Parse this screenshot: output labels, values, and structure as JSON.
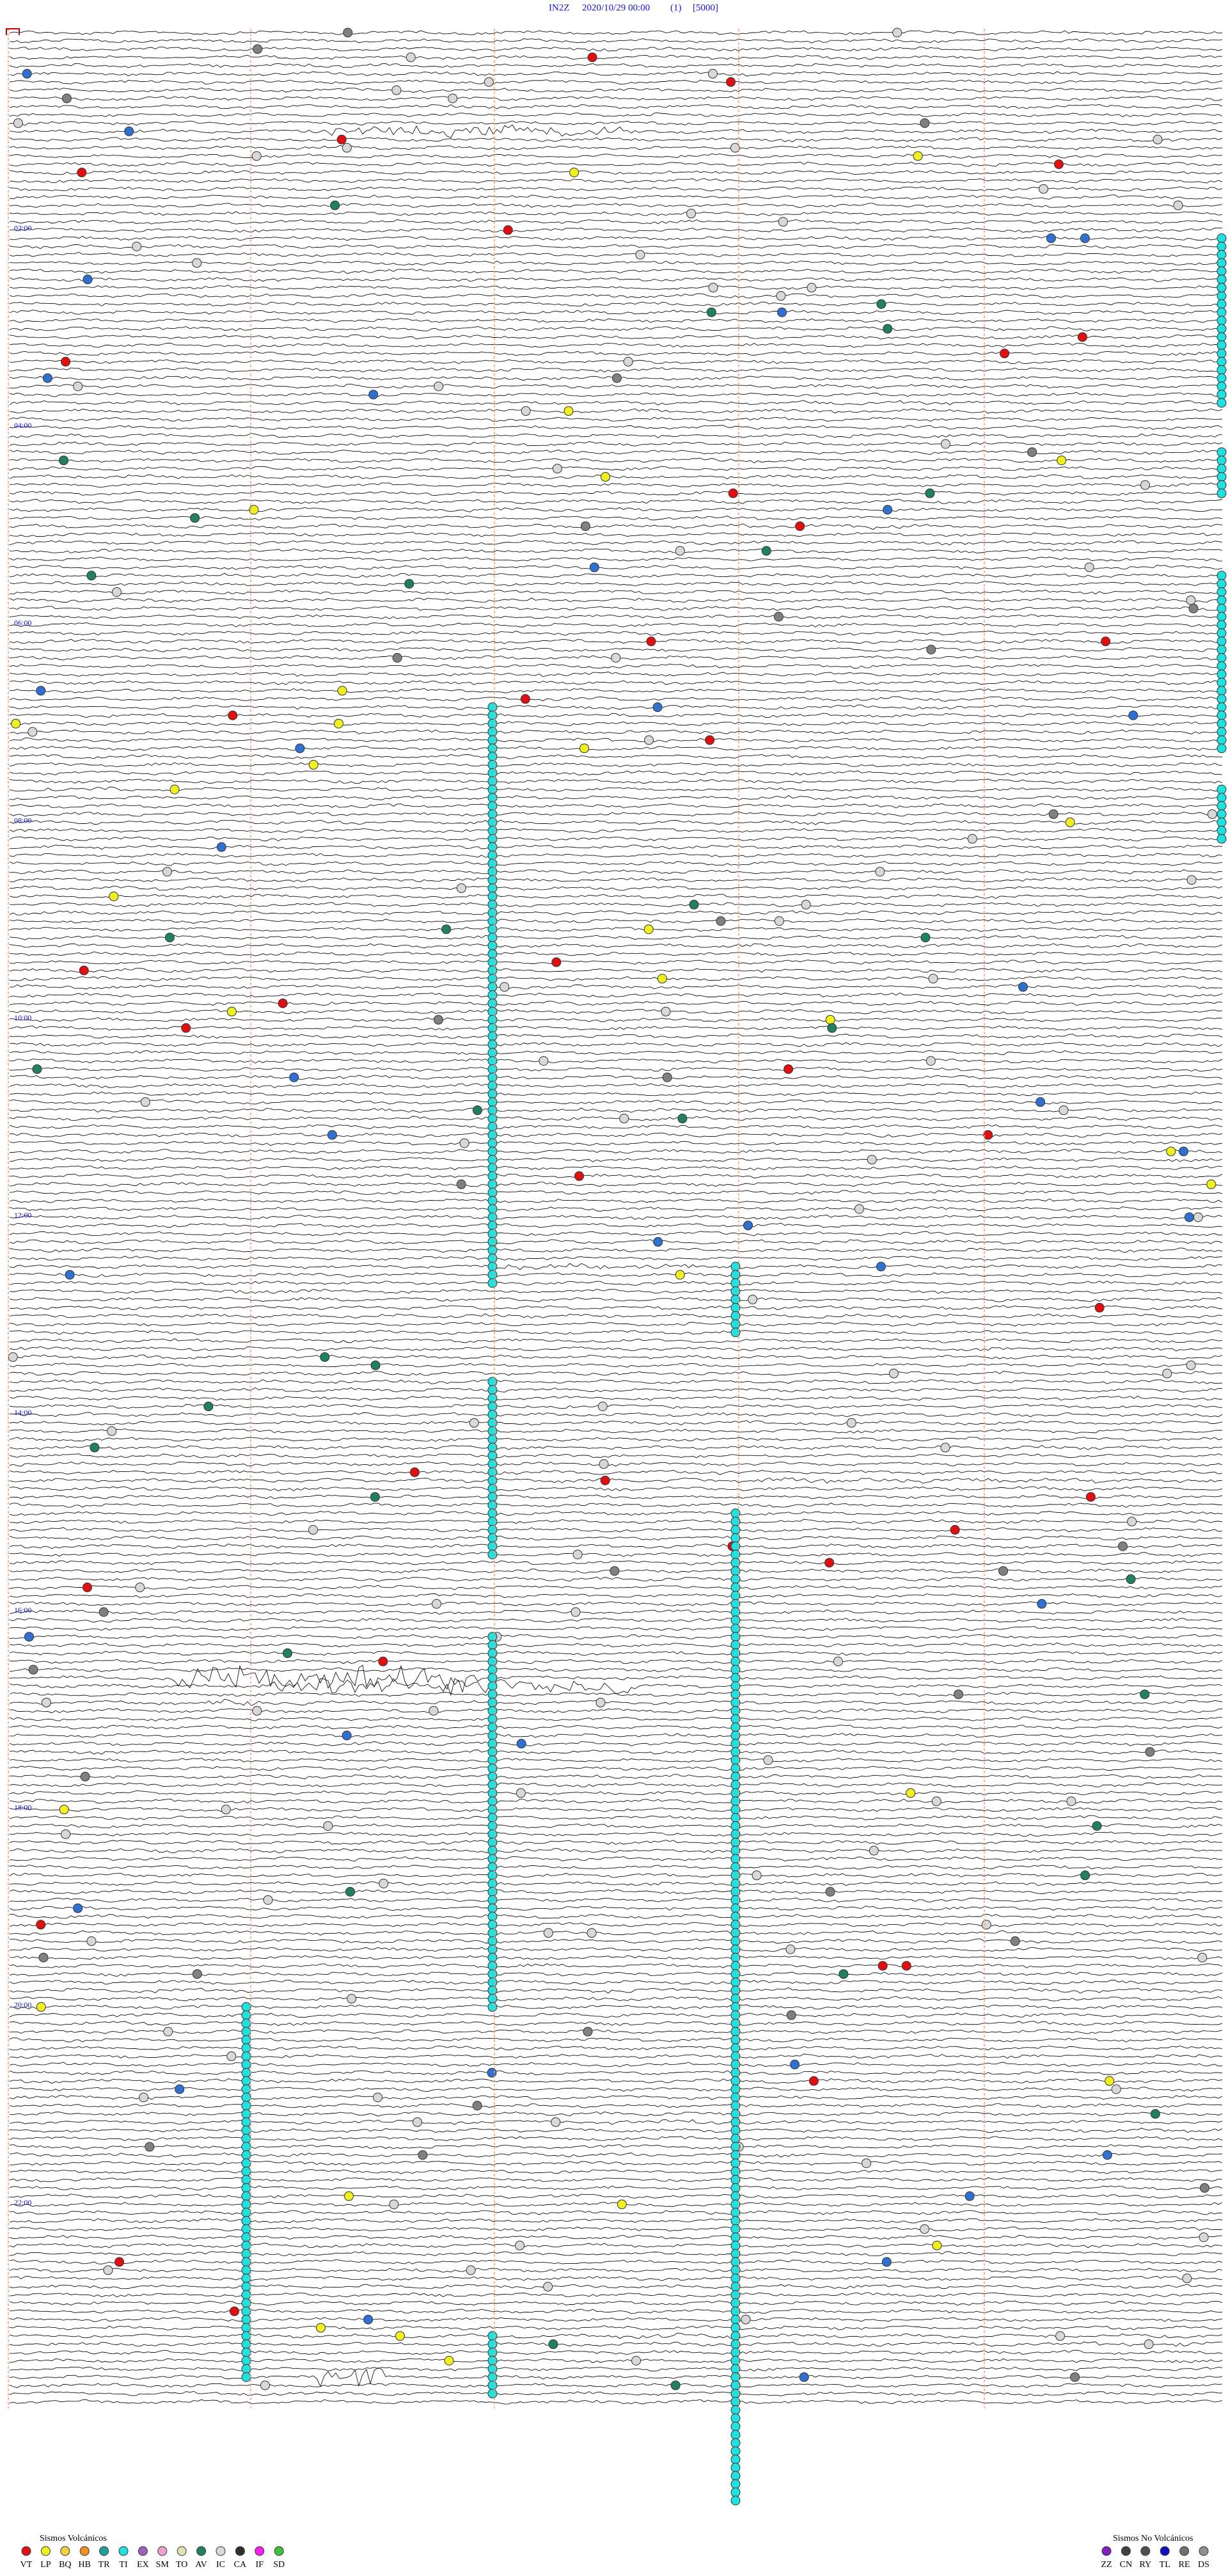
{
  "header": {
    "station": "IN2Z",
    "datetime": "2020/10/29 00:00",
    "channel": "(1)",
    "scale": "[5000]"
  },
  "time_labels": [
    "02:00",
    "04:00",
    "06:00",
    "08:00",
    "10:00",
    "12:00",
    "14:00",
    "16:00",
    "18:00",
    "20:00",
    "22:00"
  ],
  "legend_volcanic": {
    "title": "Sismos Volcánicos",
    "items": [
      {
        "code": "VT",
        "color": "#e01010"
      },
      {
        "code": "LP",
        "color": "#f0f020"
      },
      {
        "code": "BQ",
        "color": "#f0d040"
      },
      {
        "code": "HB",
        "color": "#f09020"
      },
      {
        "code": "TR",
        "color": "#20a0a0"
      },
      {
        "code": "TI",
        "color": "#20e0e0"
      },
      {
        "code": "EX",
        "color": "#a060c0"
      },
      {
        "code": "SM",
        "color": "#f0a0d0"
      },
      {
        "code": "TO",
        "color": "#e0e0b0"
      },
      {
        "code": "AV",
        "color": "#208060"
      },
      {
        "code": "IC",
        "color": "#d8d8d8"
      },
      {
        "code": "CA",
        "color": "#303030"
      },
      {
        "code": "IF",
        "color": "#f020f0"
      },
      {
        "code": "SD",
        "color": "#40c040"
      }
    ]
  },
  "legend_non_volcanic": {
    "title": "Sismos No Volcánicos",
    "items": [
      {
        "code": "ZZ",
        "color": "#8020c0"
      },
      {
        "code": "CN",
        "color": "#404040"
      },
      {
        "code": "RY",
        "color": "#505050"
      },
      {
        "code": "TL",
        "color": "#1010c0"
      },
      {
        "code": "RE",
        "color": "#707070"
      },
      {
        "code": "DS",
        "color": "#909090"
      }
    ]
  }
}
